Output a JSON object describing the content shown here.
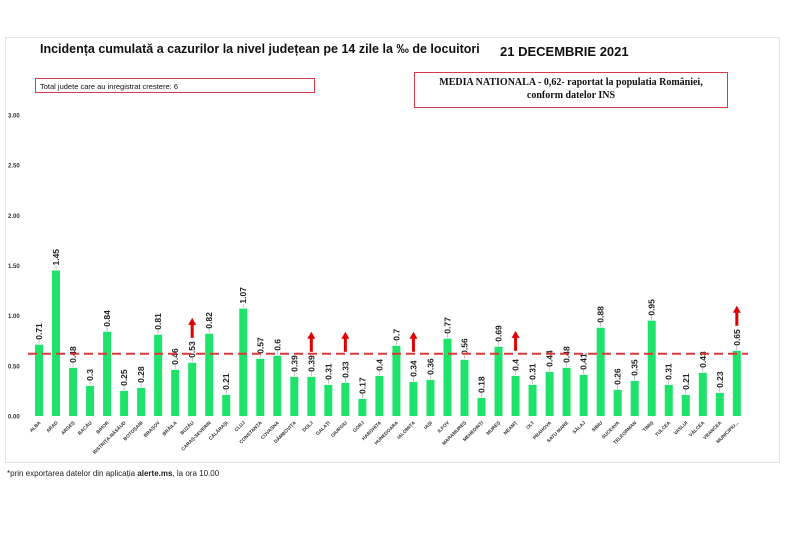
{
  "header": {
    "title": "Incidența cumulată a cazurilor la nivel județean pe 14 zile la ‰ de locuitori",
    "date": "21 DECEMBRIE 2021",
    "growth_note": "Total judete care au inregistrat crestere: 6",
    "media_line1": "MEDIA NATIONALA - 0,62-  raportat la populatia României,",
    "media_line2": "conform datelor INS"
  },
  "footnote": {
    "prefix": "*prin exportarea datelor din aplicația ",
    "app": "alerte.ms",
    "suffix": ", la ora 10.00"
  },
  "colors": {
    "bar": "#1ee36b",
    "mean_line": "#d8393a",
    "arrow": "#e00000"
  },
  "chart_data": {
    "type": "bar",
    "title": "Incidența cumulată a cazurilor la nivel județean pe 14 zile la ‰ de locuitori",
    "ylim": [
      0,
      3
    ],
    "yticks": [
      "0.00",
      "0.50",
      "1.00",
      "1.50",
      "2.00",
      "2.50",
      "3.00"
    ],
    "mean": 0.62,
    "categories": [
      "ALBA",
      "ARAD",
      "ARGEȘ",
      "BACĂU",
      "BIHOR",
      "BISTRIȚA-NĂSĂUD",
      "BOTOȘANI",
      "BRAȘOV",
      "BRĂILA",
      "BUZĂU",
      "CARAȘ-SEVERIN",
      "CĂLĂRAȘI",
      "CLUJ",
      "CONSTANȚA",
      "COVASNA",
      "DÂMBOVIȚA",
      "DOLJ",
      "GALAȚI",
      "GIURGIU",
      "GORJ",
      "HARGHITA",
      "HUNEDOARA",
      "IALOMIȚA",
      "IAȘI",
      "ILFOV",
      "MARAMUREȘ",
      "MEHEDINȚI",
      "MUREȘ",
      "NEAMȚ",
      "OLT",
      "PRAHOVA",
      "SATU MARE",
      "SĂLAJ",
      "SIBIU",
      "SUCEAVA",
      "TELEORMAN",
      "TIMIȘ",
      "TULCEA",
      "VASLUI",
      "VÂLCEA",
      "VRANCEA",
      "MUNICIPIU..."
    ],
    "values": [
      0.71,
      1.45,
      0.48,
      0.3,
      0.84,
      0.25,
      0.28,
      0.81,
      0.46,
      0.53,
      0.82,
      0.21,
      1.07,
      0.57,
      0.6,
      0.39,
      0.39,
      0.31,
      0.33,
      0.17,
      0.4,
      0.7,
      0.34,
      0.36,
      0.77,
      0.56,
      0.18,
      0.69,
      0.4,
      0.31,
      0.44,
      0.48,
      0.41,
      0.88,
      0.26,
      0.35,
      0.95,
      0.31,
      0.21,
      0.43,
      0.23,
      0.65
    ],
    "increased": [
      "BUZĂU",
      "DOLJ",
      "GIURGIU",
      "IALOMIȚA",
      "NEAMȚ",
      "MUNICIPIU..."
    ]
  }
}
